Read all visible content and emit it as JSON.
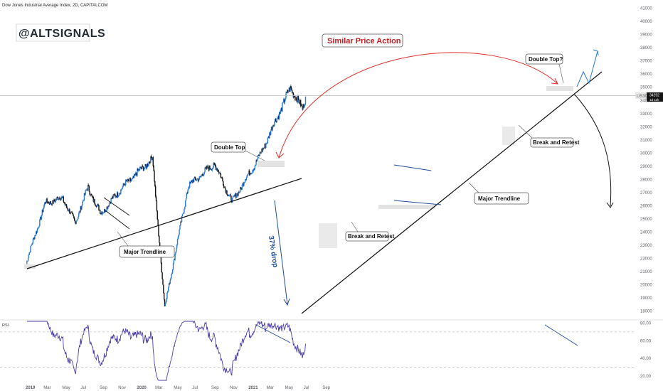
{
  "header": {
    "title": "Dow Jones Industrial Average Index, 2D, CAPITALCOM"
  },
  "watermark": {
    "handle": "@ALTSIGNALS"
  },
  "price_tag": {
    "symbol": "US30",
    "price": "34292",
    "countdown": "1d 11h"
  },
  "annotations": {
    "similar_price_action": "Similar Price Action",
    "double_top": "Double Top",
    "double_top_question": "Double Top?",
    "major_trendline_left": "Major Trendline",
    "major_trendline_right": "Major Trendline",
    "break_retest_left": "Break and Retest",
    "break_retest_right": "Break and Retest",
    "drop": "37% drop"
  },
  "rsi": {
    "label": "RSI",
    "upper_level": "70",
    "lower_level": "30"
  },
  "chart_data": [
    {
      "type": "candlestick",
      "title": "Dow Jones Industrial Average Index, 2D, CAPITALCOM",
      "y_ticks": [
        18000,
        19000,
        20000,
        21000,
        22000,
        23000,
        24000,
        25000,
        26000,
        27000,
        28000,
        29000,
        30000,
        31000,
        32000,
        33000,
        34000,
        35000,
        36000,
        37000,
        38000,
        39000,
        40000,
        41000
      ],
      "x_ticks": [
        "2019",
        "Mar",
        "May",
        "Jul",
        "Sep",
        "Nov",
        "2020",
        "Mar",
        "May",
        "Jul",
        "Sep",
        "Nov",
        "2021",
        "Mar",
        "May",
        "Jul",
        "Sep"
      ],
      "ylim": [
        17500,
        41300
      ],
      "current_price": 34292,
      "colors": {
        "up": "#2a78d6",
        "down": "#111111",
        "arc": "#e0302c",
        "trend": "#111111",
        "pattern": "#1f4d9a"
      },
      "key_points": [
        {
          "date": "2018-12-25",
          "price": 21700
        },
        {
          "date": "2019-02-25",
          "price": 26200
        },
        {
          "date": "2019-04-23",
          "price": 26600
        },
        {
          "date": "2019-06-03",
          "price": 24700
        },
        {
          "date": "2019-07-15",
          "price": 27400
        },
        {
          "date": "2019-08-26",
          "price": 25400
        },
        {
          "date": "2019-11-01",
          "price": 27300
        },
        {
          "date": "2020-02-12",
          "price": 29600
        },
        {
          "date": "2020-03-23",
          "price": 18300
        },
        {
          "date": "2020-06-08",
          "price": 27500
        },
        {
          "date": "2020-09-02",
          "price": 29200
        },
        {
          "date": "2020-10-30",
          "price": 26300
        },
        {
          "date": "2021-01-29",
          "price": 29800
        },
        {
          "date": "2021-05-10",
          "price": 35000
        },
        {
          "date": "2021-06-18",
          "price": 33300
        },
        {
          "date": "2021-06-28",
          "price": 34292
        }
      ]
    },
    {
      "type": "line",
      "title": "RSI",
      "y_ticks": [
        20,
        40,
        60,
        80
      ],
      "levels": [
        70,
        30
      ],
      "ylim": [
        15,
        82
      ]
    }
  ]
}
